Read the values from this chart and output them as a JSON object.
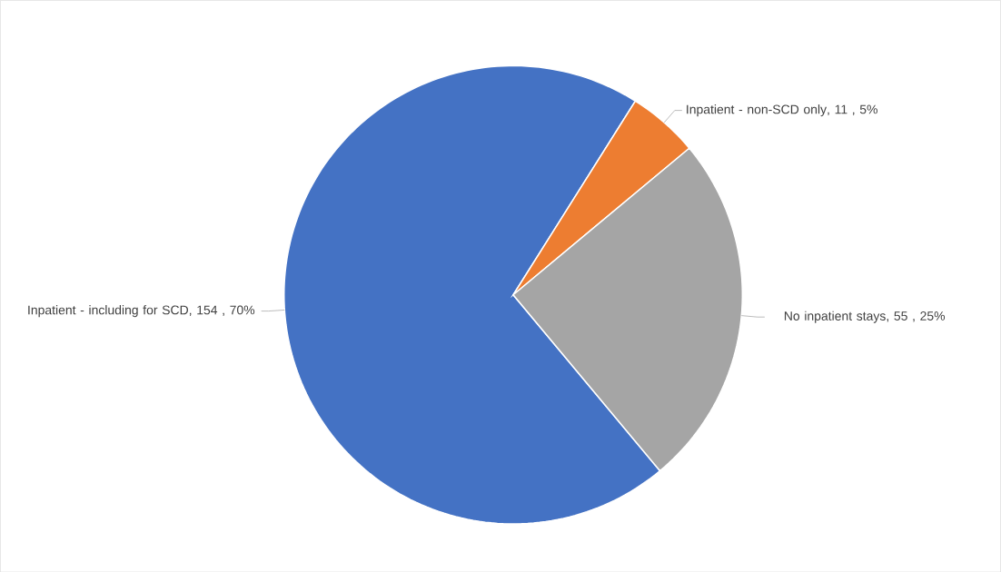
{
  "chart_data": {
    "type": "pie",
    "categories": [
      "Inpatient - including for SCD",
      "Inpatient - non-SCD only",
      "No inpatient stays"
    ],
    "values": [
      154,
      11,
      55
    ],
    "value_labels": [
      ", 154 , 70%",
      ",  11 , 5%",
      ",  55 , 25%"
    ],
    "colors": [
      "#4472c4",
      "#ed7d31",
      "#a5a5a5"
    ]
  }
}
